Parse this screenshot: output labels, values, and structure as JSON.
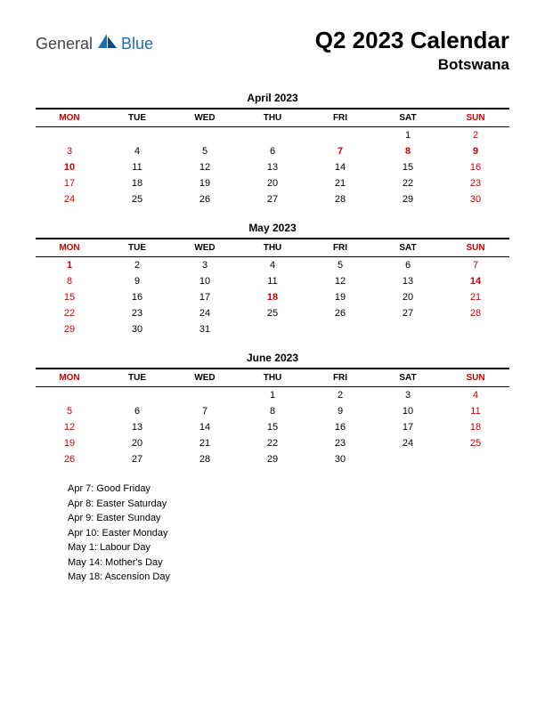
{
  "logo": {
    "text1": "General",
    "text2": "Blue",
    "icon_color1": "#1a6bb8",
    "icon_color2": "#0d4a8a"
  },
  "title": "Q2 2023 Calendar",
  "subtitle": "Botswana",
  "day_headers": [
    "MON",
    "TUE",
    "WED",
    "THU",
    "FRI",
    "SAT",
    "SUN"
  ],
  "header_red_indices": [
    0,
    6
  ],
  "months": [
    {
      "title": "April 2023",
      "weeks": [
        [
          {
            "d": ""
          },
          {
            "d": ""
          },
          {
            "d": ""
          },
          {
            "d": ""
          },
          {
            "d": ""
          },
          {
            "d": "1"
          },
          {
            "d": "2",
            "r": true
          }
        ],
        [
          {
            "d": "3",
            "r": true
          },
          {
            "d": "4"
          },
          {
            "d": "5"
          },
          {
            "d": "6"
          },
          {
            "d": "7",
            "r": true,
            "b": true
          },
          {
            "d": "8",
            "r": true,
            "b": true
          },
          {
            "d": "9",
            "r": true,
            "b": true
          }
        ],
        [
          {
            "d": "10",
            "r": true,
            "b": true
          },
          {
            "d": "11"
          },
          {
            "d": "12"
          },
          {
            "d": "13"
          },
          {
            "d": "14"
          },
          {
            "d": "15"
          },
          {
            "d": "16",
            "r": true
          }
        ],
        [
          {
            "d": "17",
            "r": true
          },
          {
            "d": "18"
          },
          {
            "d": "19"
          },
          {
            "d": "20"
          },
          {
            "d": "21"
          },
          {
            "d": "22"
          },
          {
            "d": "23",
            "r": true
          }
        ],
        [
          {
            "d": "24",
            "r": true
          },
          {
            "d": "25"
          },
          {
            "d": "26"
          },
          {
            "d": "27"
          },
          {
            "d": "28"
          },
          {
            "d": "29"
          },
          {
            "d": "30",
            "r": true
          }
        ]
      ]
    },
    {
      "title": "May 2023",
      "weeks": [
        [
          {
            "d": "1",
            "r": true,
            "b": true
          },
          {
            "d": "2"
          },
          {
            "d": "3"
          },
          {
            "d": "4"
          },
          {
            "d": "5"
          },
          {
            "d": "6"
          },
          {
            "d": "7",
            "r": true
          }
        ],
        [
          {
            "d": "8",
            "r": true
          },
          {
            "d": "9"
          },
          {
            "d": "10"
          },
          {
            "d": "11"
          },
          {
            "d": "12"
          },
          {
            "d": "13"
          },
          {
            "d": "14",
            "r": true,
            "b": true
          }
        ],
        [
          {
            "d": "15",
            "r": true
          },
          {
            "d": "16"
          },
          {
            "d": "17"
          },
          {
            "d": "18",
            "r": true,
            "b": true
          },
          {
            "d": "19"
          },
          {
            "d": "20"
          },
          {
            "d": "21",
            "r": true
          }
        ],
        [
          {
            "d": "22",
            "r": true
          },
          {
            "d": "23"
          },
          {
            "d": "24"
          },
          {
            "d": "25"
          },
          {
            "d": "26"
          },
          {
            "d": "27"
          },
          {
            "d": "28",
            "r": true
          }
        ],
        [
          {
            "d": "29",
            "r": true
          },
          {
            "d": "30"
          },
          {
            "d": "31"
          },
          {
            "d": ""
          },
          {
            "d": ""
          },
          {
            "d": ""
          },
          {
            "d": ""
          }
        ]
      ]
    },
    {
      "title": "June 2023",
      "weeks": [
        [
          {
            "d": ""
          },
          {
            "d": ""
          },
          {
            "d": ""
          },
          {
            "d": "1"
          },
          {
            "d": "2"
          },
          {
            "d": "3"
          },
          {
            "d": "4",
            "r": true
          }
        ],
        [
          {
            "d": "5",
            "r": true
          },
          {
            "d": "6"
          },
          {
            "d": "7"
          },
          {
            "d": "8"
          },
          {
            "d": "9"
          },
          {
            "d": "10"
          },
          {
            "d": "11",
            "r": true
          }
        ],
        [
          {
            "d": "12",
            "r": true
          },
          {
            "d": "13"
          },
          {
            "d": "14"
          },
          {
            "d": "15"
          },
          {
            "d": "16"
          },
          {
            "d": "17"
          },
          {
            "d": "18",
            "r": true
          }
        ],
        [
          {
            "d": "19",
            "r": true
          },
          {
            "d": "20"
          },
          {
            "d": "21"
          },
          {
            "d": "22"
          },
          {
            "d": "23"
          },
          {
            "d": "24"
          },
          {
            "d": "25",
            "r": true
          }
        ],
        [
          {
            "d": "26",
            "r": true
          },
          {
            "d": "27"
          },
          {
            "d": "28"
          },
          {
            "d": "29"
          },
          {
            "d": "30"
          },
          {
            "d": ""
          },
          {
            "d": ""
          }
        ]
      ]
    }
  ],
  "holidays": [
    "Apr 7: Good Friday",
    "Apr 8: Easter Saturday",
    "Apr 9: Easter Sunday",
    "Apr 10: Easter Monday",
    "May 1: Labour Day",
    "May 14: Mother's Day",
    "May 18: Ascension Day"
  ]
}
